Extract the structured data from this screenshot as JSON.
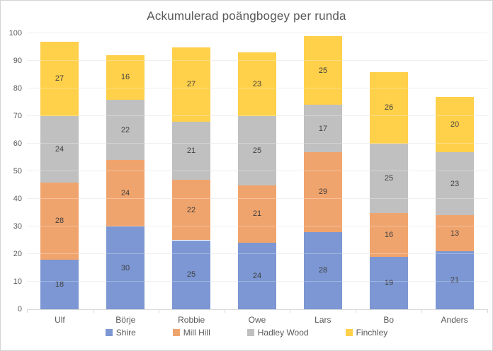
{
  "chart_data": {
    "type": "bar",
    "stacked": true,
    "title": "Ackumulerad poängbogey per runda",
    "categories": [
      "Ulf",
      "Börje",
      "Robbie",
      "Owe",
      "Lars",
      "Bo",
      "Anders"
    ],
    "series": [
      {
        "name": "Shire",
        "color": "#7c97d3",
        "values": [
          18,
          30,
          25,
          24,
          28,
          19,
          21
        ]
      },
      {
        "name": "Mill Hill",
        "color": "#f0a46d",
        "values": [
          28,
          24,
          22,
          21,
          29,
          16,
          13
        ]
      },
      {
        "name": "Hadley Wood",
        "color": "#c0c0c0",
        "values": [
          24,
          22,
          21,
          25,
          17,
          25,
          23
        ]
      },
      {
        "name": "Finchley",
        "color": "#ffd04a",
        "values": [
          27,
          16,
          27,
          23,
          25,
          26,
          20
        ]
      }
    ],
    "totals": [
      97,
      92,
      95,
      93,
      99,
      86,
      77
    ],
    "ylim": [
      0,
      100
    ],
    "ytick_step": 10,
    "ytick_labels": [
      "0",
      "10",
      "20",
      "30",
      "40",
      "50",
      "60",
      "70",
      "80",
      "90",
      "100"
    ],
    "grid": true,
    "data_labels": true,
    "legend_position": "bottom",
    "colors": {
      "title_text": "#595959",
      "axis_text": "#595959",
      "data_label_text": "#3f3f3f",
      "gridline": "#e9e9e9",
      "axis_line": "#d9d9d9",
      "background": "#ffffff",
      "border": "#d4d4d4"
    }
  }
}
